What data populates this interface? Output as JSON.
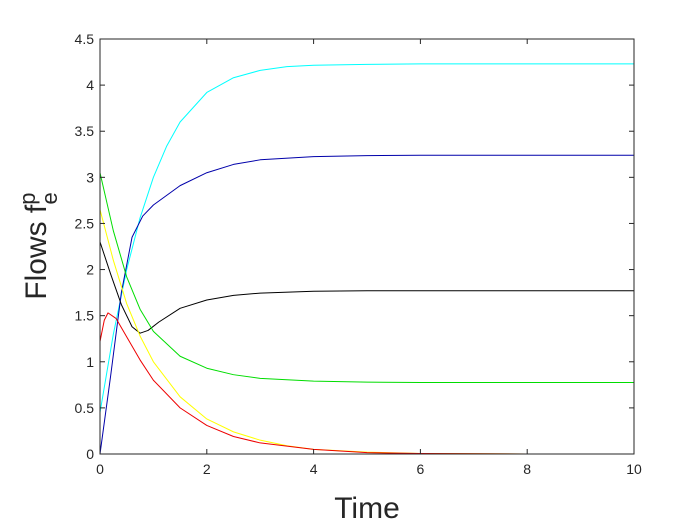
{
  "chart_data": {
    "type": "line",
    "xlabel": "Time",
    "ylabel": {
      "base": "Flows f",
      "superscript": "p",
      "subscript": "e"
    },
    "xlim": [
      0,
      10
    ],
    "ylim": [
      0,
      4.5
    ],
    "xticks": [
      "0",
      "2",
      "4",
      "6",
      "8",
      "10"
    ],
    "yticks": [
      "0",
      "0.5",
      "1",
      "1.5",
      "2",
      "2.5",
      "3",
      "3.5",
      "4",
      "4.5"
    ],
    "grid": false,
    "legend": "none",
    "series": [
      {
        "color": "#00ffff",
        "x": [
          0,
          0.25,
          0.5,
          0.75,
          1,
          1.25,
          1.5,
          2,
          2.5,
          3,
          3.5,
          4,
          5,
          6,
          7,
          8,
          10
        ],
        "y": [
          0.45,
          1.3,
          2.0,
          2.56,
          3.0,
          3.34,
          3.6,
          3.92,
          4.08,
          4.16,
          4.2,
          4.215,
          4.225,
          4.23,
          4.23,
          4.23,
          4.23
        ]
      },
      {
        "color": "#0000aa",
        "x": [
          0,
          0.2,
          0.4,
          0.6,
          0.8,
          1,
          1.5,
          2,
          2.5,
          3,
          4,
          5,
          6,
          8,
          10
        ],
        "y": [
          0.0,
          0.85,
          1.75,
          2.35,
          2.58,
          2.7,
          2.91,
          3.05,
          3.14,
          3.19,
          3.225,
          3.235,
          3.24,
          3.24,
          3.24
        ]
      },
      {
        "color": "#000000",
        "x": [
          0,
          0.2,
          0.4,
          0.6,
          0.75,
          0.9,
          1.1,
          1.5,
          2,
          2.5,
          3,
          4,
          5,
          6,
          8,
          10
        ],
        "y": [
          2.3,
          1.95,
          1.62,
          1.38,
          1.31,
          1.34,
          1.43,
          1.58,
          1.67,
          1.72,
          1.745,
          1.765,
          1.77,
          1.77,
          1.77,
          1.77
        ]
      },
      {
        "color": "#00dd00",
        "x": [
          0,
          0.25,
          0.5,
          0.75,
          1,
          1.5,
          2,
          2.5,
          3,
          4,
          5,
          6,
          8,
          10
        ],
        "y": [
          3.05,
          2.42,
          1.92,
          1.57,
          1.33,
          1.06,
          0.93,
          0.86,
          0.82,
          0.79,
          0.78,
          0.775,
          0.775,
          0.775
        ]
      },
      {
        "color": "#ffff00",
        "x": [
          0,
          0.25,
          0.5,
          0.75,
          1,
          1.5,
          2,
          2.5,
          3,
          3.5,
          4,
          5,
          6,
          8,
          10
        ],
        "y": [
          2.65,
          2.1,
          1.63,
          1.28,
          1.0,
          0.62,
          0.38,
          0.24,
          0.15,
          0.09,
          0.05,
          0.02,
          0.005,
          0.0,
          0.0
        ]
      },
      {
        "color": "#ee0000",
        "x": [
          0,
          0.08,
          0.15,
          0.3,
          0.5,
          0.75,
          1,
          1.5,
          2,
          2.5,
          3,
          4,
          5,
          6,
          8,
          10
        ],
        "y": [
          1.22,
          1.45,
          1.53,
          1.47,
          1.27,
          1.02,
          0.8,
          0.5,
          0.31,
          0.19,
          0.12,
          0.05,
          0.015,
          0.005,
          0.0,
          0.0
        ]
      }
    ]
  }
}
